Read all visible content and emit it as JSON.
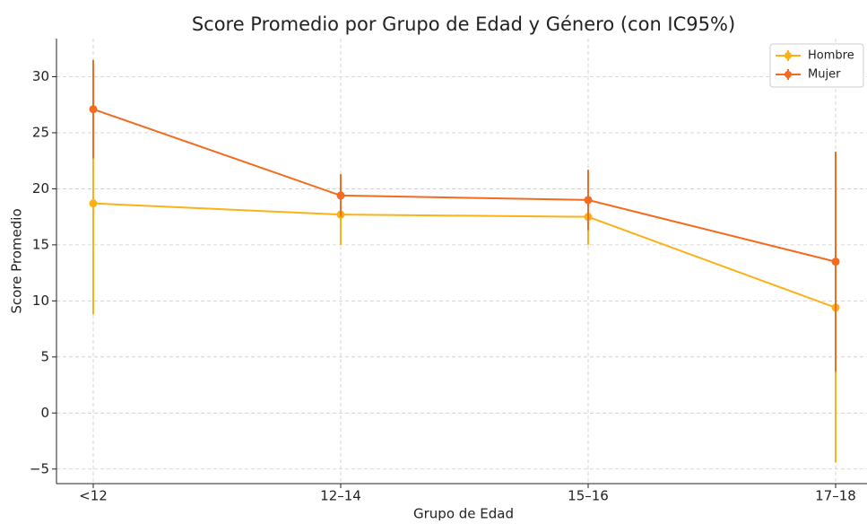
{
  "chart_data": {
    "type": "line",
    "title": "Score Promedio por Grupo de Edad y Género (con IC95%)",
    "xlabel": "Grupo de Edad",
    "ylabel": "Score Promedio",
    "categories": [
      "<12",
      "12–14",
      "15–16",
      "17–18"
    ],
    "series": [
      {
        "name": "Hombre",
        "color": "#fbb117",
        "values": [
          18.7,
          17.7,
          17.5,
          9.4
        ],
        "errors": [
          9.9,
          2.7,
          2.5,
          13.8
        ]
      },
      {
        "name": "Mujer",
        "color": "#f26b21",
        "values": [
          27.1,
          19.4,
          19.0,
          13.5
        ],
        "errors": [
          4.4,
          1.9,
          2.7,
          9.8
        ]
      }
    ],
    "ylim": [
      -6.3,
      33.4
    ],
    "yticks": [
      {
        "value": -5,
        "label": "−5"
      },
      0,
      5,
      10,
      15,
      20,
      25,
      30
    ],
    "grid": true,
    "legend": "upper right"
  }
}
